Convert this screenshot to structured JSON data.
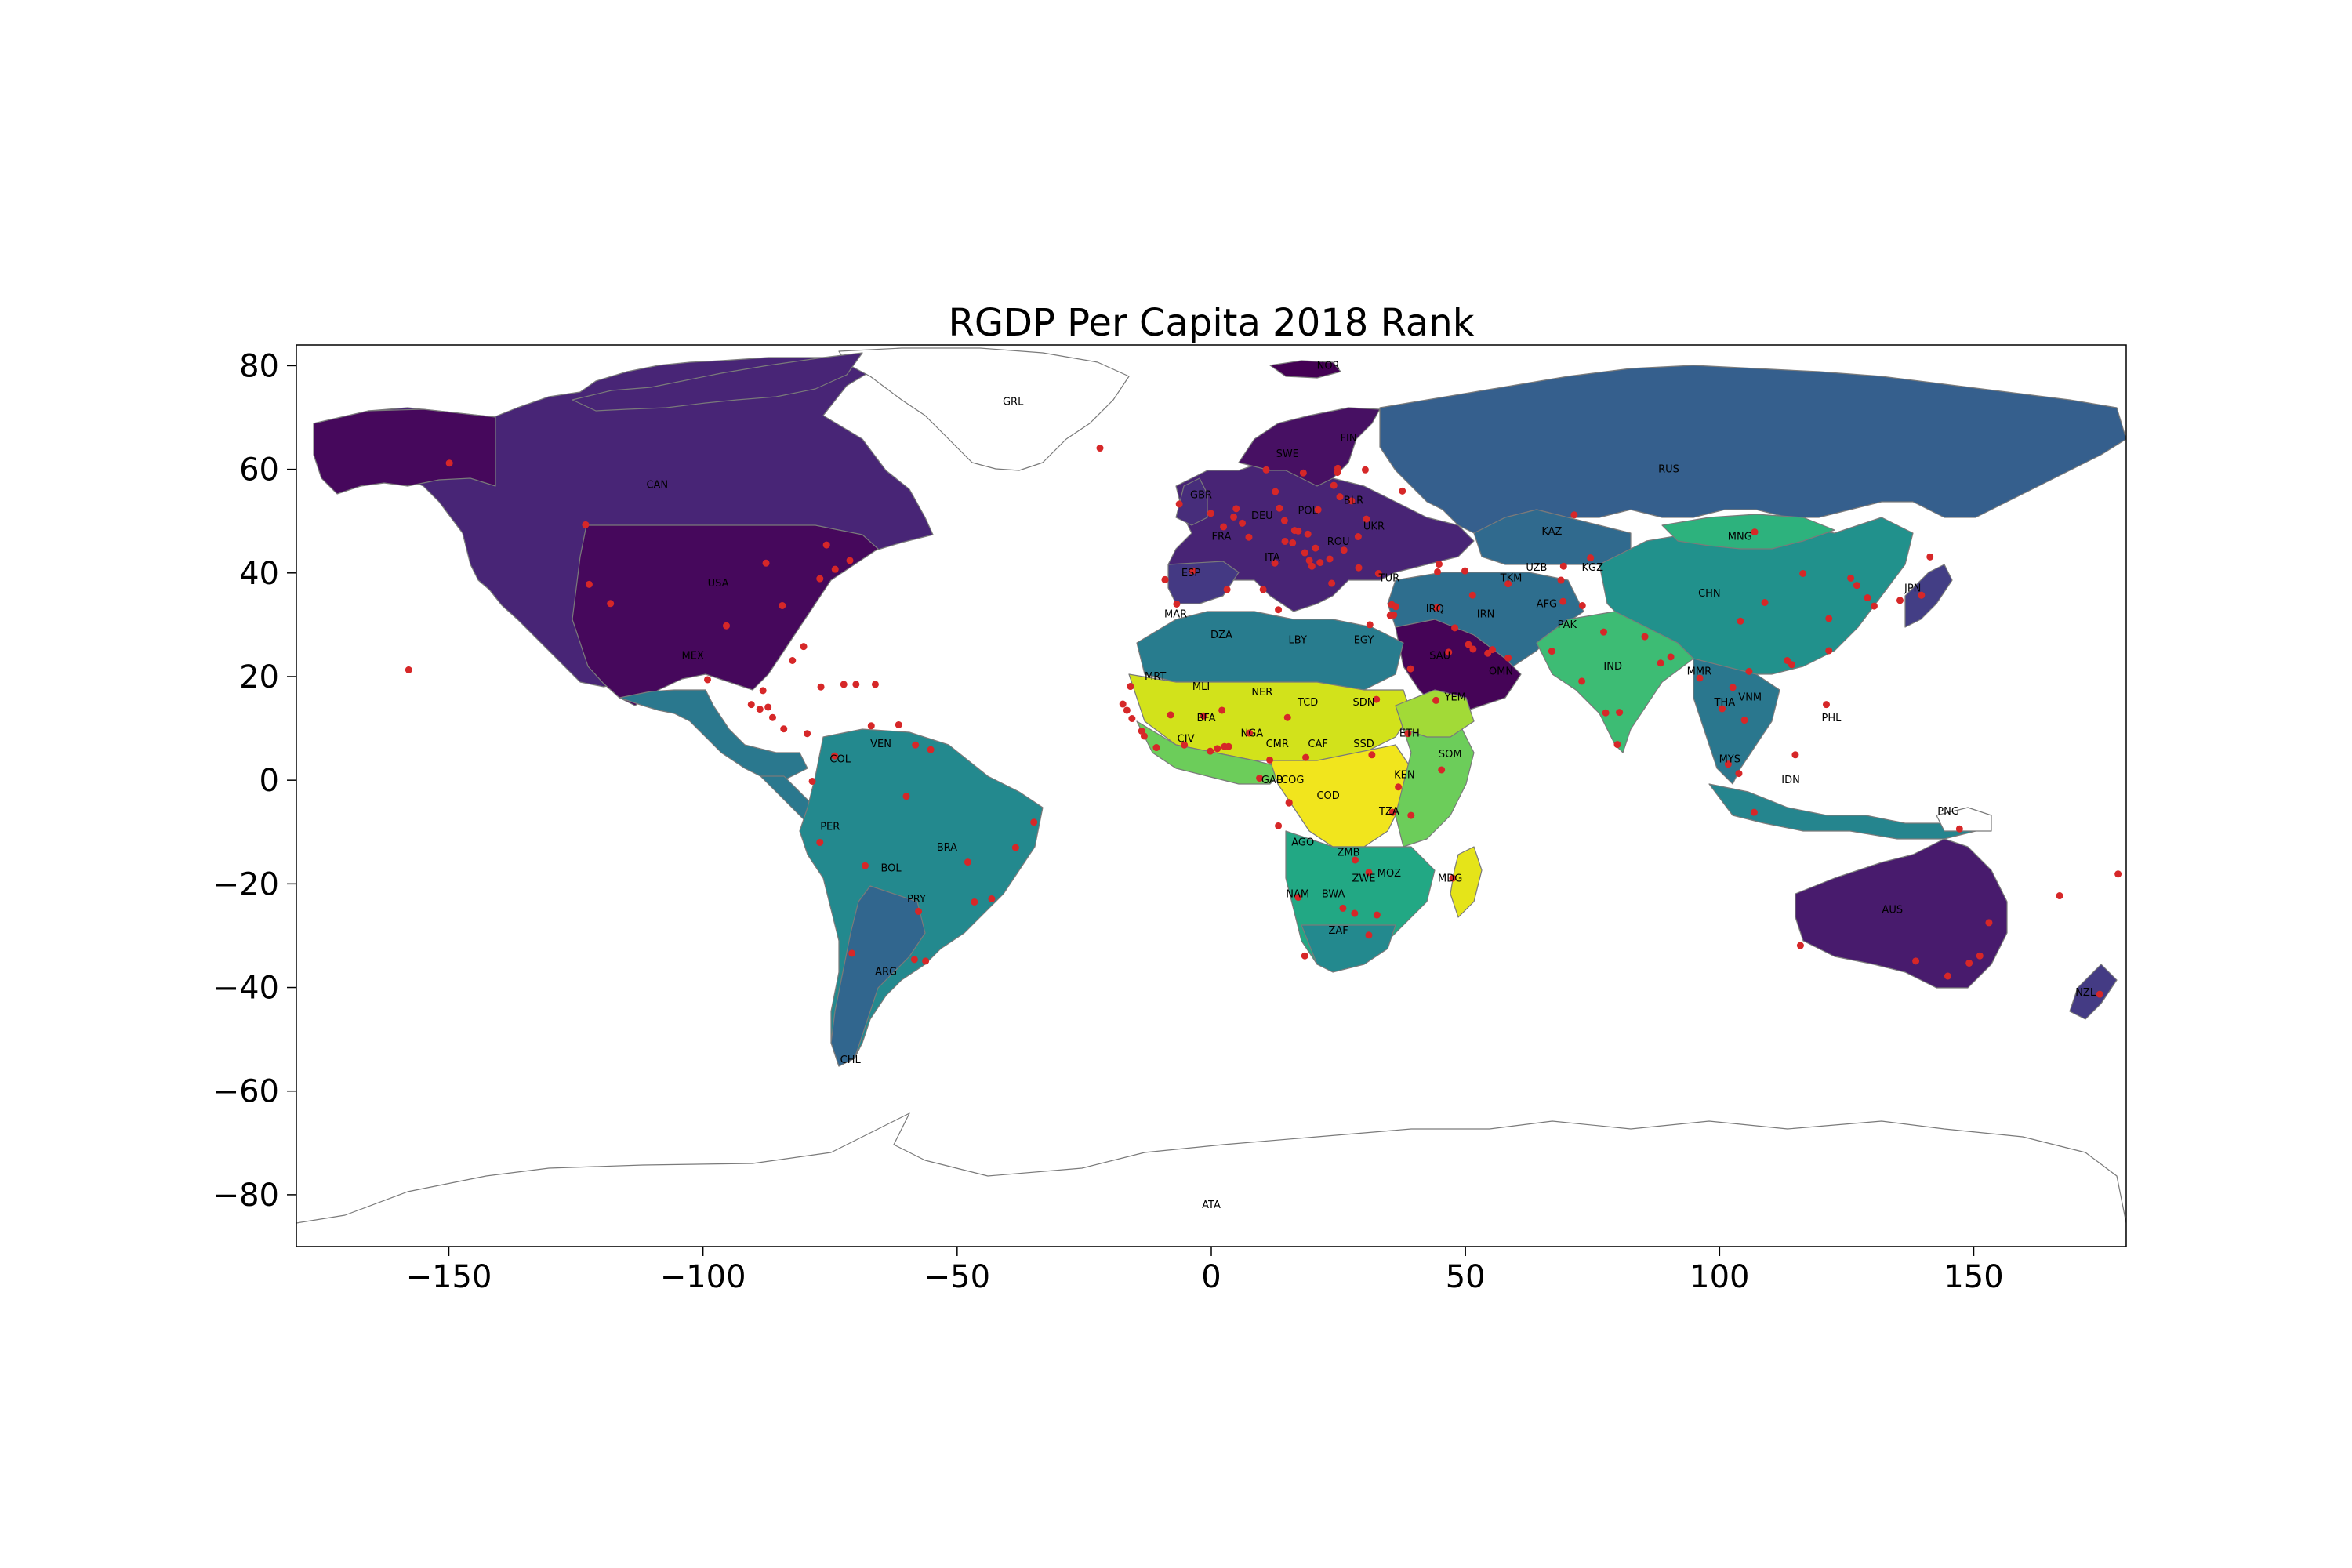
{
  "figure": {
    "title": "RGDP Per Capita 2018 Rank"
  },
  "axes": {
    "xlim": [
      -180,
      180
    ],
    "ylim": [
      -90,
      84
    ],
    "xticks": [
      {
        "value": -150,
        "label": "−150"
      },
      {
        "value": -100,
        "label": "−100"
      },
      {
        "value": -50,
        "label": "−50"
      },
      {
        "value": 0,
        "label": "0"
      },
      {
        "value": 50,
        "label": "50"
      },
      {
        "value": 100,
        "label": "100"
      },
      {
        "value": 150,
        "label": "150"
      }
    ],
    "yticks": [
      {
        "value": 80,
        "label": "80"
      },
      {
        "value": 60,
        "label": "60"
      },
      {
        "value": 40,
        "label": "40"
      },
      {
        "value": 20,
        "label": "20"
      },
      {
        "value": 0,
        "label": "0"
      },
      {
        "value": -20,
        "label": "−20"
      },
      {
        "value": -40,
        "label": "−40"
      },
      {
        "value": -60,
        "label": "−60"
      },
      {
        "value": -80,
        "label": "−80"
      }
    ]
  },
  "colors": {
    "no_data": "#ffffff",
    "capital_marker": "#d62728",
    "outline": "#7a7a7a",
    "colormap": "viridis"
  },
  "map_data": {
    "type": "choropleth",
    "colormap": "viridis",
    "countries": [
      {
        "code": "USA",
        "lon": -97,
        "lat": 38,
        "color": "#46085c"
      },
      {
        "code": "CAN",
        "lon": -109,
        "lat": 57,
        "color": "#482576"
      },
      {
        "code": "MEX",
        "lon": -102,
        "lat": 24,
        "color": "#2a788e"
      },
      {
        "code": "GRL",
        "lon": -39,
        "lat": 73,
        "color": "#ffffff"
      },
      {
        "code": "VEN",
        "lon": -65,
        "lat": 7,
        "color": "#218f8d"
      },
      {
        "code": "COL",
        "lon": -73,
        "lat": 4,
        "color": "#25858e"
      },
      {
        "code": "PER",
        "lon": -75,
        "lat": -9,
        "color": "#2c718e"
      },
      {
        "code": "BRA",
        "lon": -52,
        "lat": -13,
        "color": "#23898e"
      },
      {
        "code": "BOL",
        "lon": -63,
        "lat": -17,
        "color": "#35b779"
      },
      {
        "code": "PRY",
        "lon": -58,
        "lat": -23,
        "color": "#2c728e"
      },
      {
        "code": "ARG",
        "lon": -64,
        "lat": -37,
        "color": "#31668e"
      },
      {
        "code": "CHL",
        "lon": -71,
        "lat": -54,
        "color": "#33638d"
      },
      {
        "code": "NOR",
        "lon": 23,
        "lat": 80,
        "color": "#440154"
      },
      {
        "code": "SWE",
        "lon": 15,
        "lat": 63,
        "color": "#471063"
      },
      {
        "code": "FIN",
        "lon": 27,
        "lat": 66,
        "color": "#481467"
      },
      {
        "code": "GBR",
        "lon": -2,
        "lat": 55,
        "color": "#472d7b"
      },
      {
        "code": "FRA",
        "lon": 2,
        "lat": 47,
        "color": "#482475"
      },
      {
        "code": "DEU",
        "lon": 10,
        "lat": 51,
        "color": "#481769"
      },
      {
        "code": "POL",
        "lon": 19,
        "lat": 52,
        "color": "#3b528b"
      },
      {
        "code": "BLR",
        "lon": 28,
        "lat": 54,
        "color": "#31688e"
      },
      {
        "code": "UKR",
        "lon": 32,
        "lat": 49,
        "color": "#29af7f"
      },
      {
        "code": "ROU",
        "lon": 25,
        "lat": 46,
        "color": "#3e4989"
      },
      {
        "code": "ITA",
        "lon": 12,
        "lat": 43,
        "color": "#482878"
      },
      {
        "code": "ESP",
        "lon": -4,
        "lat": 40,
        "color": "#443983"
      },
      {
        "code": "TUR",
        "lon": 35,
        "lat": 39,
        "color": "#365c8d"
      },
      {
        "code": "RUS",
        "lon": 90,
        "lat": 60,
        "color": "#355f8d"
      },
      {
        "code": "KAZ",
        "lon": 67,
        "lat": 48,
        "color": "#306a8e"
      },
      {
        "code": "MNG",
        "lon": 104,
        "lat": 47,
        "color": "#2db27d"
      },
      {
        "code": "CHN",
        "lon": 98,
        "lat": 36,
        "color": "#21918c"
      },
      {
        "code": "UZB",
        "lon": 64,
        "lat": 41,
        "color": "#ffffff"
      },
      {
        "code": "TKM",
        "lon": 59,
        "lat": 39,
        "color": "#ffffff"
      },
      {
        "code": "KGZ",
        "lon": 75,
        "lat": 41,
        "color": "#5ec962"
      },
      {
        "code": "AFG",
        "lon": 66,
        "lat": 34,
        "color": "#ffffff"
      },
      {
        "code": "PAK",
        "lon": 70,
        "lat": 30,
        "color": "#6ccd5a"
      },
      {
        "code": "IRN",
        "lon": 54,
        "lat": 32,
        "color": "#2e6e8e"
      },
      {
        "code": "IRQ",
        "lon": 44,
        "lat": 33,
        "color": "#22a884"
      },
      {
        "code": "SAU",
        "lon": 45,
        "lat": 24,
        "color": "#450457"
      },
      {
        "code": "OMN",
        "lon": 57,
        "lat": 21,
        "color": "#3f4788"
      },
      {
        "code": "YEM",
        "lon": 48,
        "lat": 16,
        "color": "#b5de2b"
      },
      {
        "code": "IND",
        "lon": 79,
        "lat": 22,
        "color": "#3dbc74"
      },
      {
        "code": "MMR",
        "lon": 96,
        "lat": 21,
        "color": "#5ec962"
      },
      {
        "code": "THA",
        "lon": 101,
        "lat": 15,
        "color": "#2a778e"
      },
      {
        "code": "VNM",
        "lon": 106,
        "lat": 16,
        "color": "#52c569"
      },
      {
        "code": "MYS",
        "lon": 102,
        "lat": 4,
        "color": "#3b528b"
      },
      {
        "code": "IDN",
        "lon": 114,
        "lat": 0,
        "color": "#25858e"
      },
      {
        "code": "PHL",
        "lon": 122,
        "lat": 12,
        "color": "#38b977"
      },
      {
        "code": "PNG",
        "lon": 145,
        "lat": -6,
        "color": "#ffffff"
      },
      {
        "code": "JPN",
        "lon": 138,
        "lat": 37,
        "color": "#433e85"
      },
      {
        "code": "AUS",
        "lon": 134,
        "lat": -25,
        "color": "#481b6d"
      },
      {
        "code": "NZL",
        "lon": 172,
        "lat": -41,
        "color": "#443b84"
      },
      {
        "code": "MAR",
        "lon": -7,
        "lat": 32,
        "color": "#29af7f"
      },
      {
        "code": "DZA",
        "lon": 2,
        "lat": 28,
        "color": "#287c8e"
      },
      {
        "code": "LBY",
        "lon": 17,
        "lat": 27,
        "color": "#2c728e"
      },
      {
        "code": "EGY",
        "lon": 30,
        "lat": 27,
        "color": "#29af7f"
      },
      {
        "code": "MRT",
        "lon": -11,
        "lat": 20,
        "color": "#7ad151"
      },
      {
        "code": "MLI",
        "lon": -2,
        "lat": 18,
        "color": "#d2e21b"
      },
      {
        "code": "NER",
        "lon": 10,
        "lat": 17,
        "color": "#f1e51d"
      },
      {
        "code": "TCD",
        "lon": 19,
        "lat": 15,
        "color": "#8fd744"
      },
      {
        "code": "SDN",
        "lon": 30,
        "lat": 15,
        "color": "#6ccd5a"
      },
      {
        "code": "SSD",
        "lon": 30,
        "lat": 7,
        "color": "#ffffff"
      },
      {
        "code": "ETH",
        "lon": 39,
        "lat": 9,
        "color": "#a2da37"
      },
      {
        "code": "SOM",
        "lon": 47,
        "lat": 5,
        "color": "#ffffff"
      },
      {
        "code": "NGA",
        "lon": 8,
        "lat": 9,
        "color": "#6ccd5a"
      },
      {
        "code": "CMR",
        "lon": 13,
        "lat": 7,
        "color": "#7ad151"
      },
      {
        "code": "CAF",
        "lon": 21,
        "lat": 7,
        "color": "#fde725"
      },
      {
        "code": "BFA",
        "lon": -1,
        "lat": 12,
        "color": "#c0df25"
      },
      {
        "code": "CIV",
        "lon": -5,
        "lat": 8,
        "color": "#6ccd5a"
      },
      {
        "code": "GAB",
        "lon": 12,
        "lat": 0,
        "color": "#26828e"
      },
      {
        "code": "COG",
        "lon": 16,
        "lat": 0,
        "color": "#3dbc74"
      },
      {
        "code": "COD",
        "lon": 23,
        "lat": -3,
        "color": "#f1e51d"
      },
      {
        "code": "KEN",
        "lon": 38,
        "lat": 1,
        "color": "#6ccd5a"
      },
      {
        "code": "TZA",
        "lon": 35,
        "lat": -6,
        "color": "#7ad151"
      },
      {
        "code": "AGO",
        "lon": 18,
        "lat": -12,
        "color": "#1fa188"
      },
      {
        "code": "ZMB",
        "lon": 27,
        "lat": -14,
        "color": "#8fd744"
      },
      {
        "code": "MOZ",
        "lon": 35,
        "lat": -18,
        "color": "#e2e418"
      },
      {
        "code": "ZWE",
        "lon": 30,
        "lat": -19,
        "color": "#b5de2b"
      },
      {
        "code": "MDG",
        "lon": 47,
        "lat": -19,
        "color": "#e5e419"
      },
      {
        "code": "NAM",
        "lon": 17,
        "lat": -22,
        "color": "#22a884"
      },
      {
        "code": "BWA",
        "lon": 24,
        "lat": -22,
        "color": "#2e6e8e"
      },
      {
        "code": "ZAF",
        "lon": 25,
        "lat": -29,
        "color": "#23898e"
      },
      {
        "code": "ATA",
        "lon": 0,
        "lat": -82,
        "color": "#ffffff"
      }
    ],
    "capitals": [
      [
        -77.0,
        38.9
      ],
      [
        -75.7,
        45.4
      ],
      [
        -99.1,
        19.4
      ],
      [
        -74.1,
        4.7
      ],
      [
        -66.9,
        10.5
      ],
      [
        -77.0,
        -12.0
      ],
      [
        -47.9,
        -15.8
      ],
      [
        -68.1,
        -16.5
      ],
      [
        -57.6,
        -25.3
      ],
      [
        -58.4,
        -34.6
      ],
      [
        -70.7,
        -33.4
      ],
      [
        -0.1,
        51.5
      ],
      [
        2.4,
        48.9
      ],
      [
        13.4,
        52.5
      ],
      [
        21.0,
        52.2
      ],
      [
        27.6,
        53.9
      ],
      [
        30.5,
        50.4
      ],
      [
        26.1,
        44.4
      ],
      [
        12.5,
        41.9
      ],
      [
        -3.7,
        40.4
      ],
      [
        32.9,
        39.9
      ],
      [
        37.6,
        55.8
      ],
      [
        71.4,
        51.2
      ],
      [
        106.9,
        47.9
      ],
      [
        116.4,
        39.9
      ],
      [
        69.3,
        41.3
      ],
      [
        58.4,
        37.9
      ],
      [
        74.6,
        42.9
      ],
      [
        69.2,
        34.5
      ],
      [
        73.0,
        33.7
      ],
      [
        51.4,
        35.7
      ],
      [
        44.4,
        33.3
      ],
      [
        46.7,
        24.7
      ],
      [
        58.4,
        23.6
      ],
      [
        44.2,
        15.4
      ],
      [
        77.2,
        28.6
      ],
      [
        96.1,
        19.7
      ],
      [
        100.5,
        13.8
      ],
      [
        105.8,
        21.0
      ],
      [
        101.7,
        3.1
      ],
      [
        106.8,
        -6.2
      ],
      [
        121.0,
        14.6
      ],
      [
        147.2,
        -9.4
      ],
      [
        139.7,
        35.7
      ],
      [
        149.1,
        -35.3
      ],
      [
        174.8,
        -41.3
      ],
      [
        -6.8,
        34.0
      ],
      [
        3.1,
        36.8
      ],
      [
        13.2,
        32.9
      ],
      [
        31.2,
        30.0
      ],
      [
        -15.9,
        18.1
      ],
      [
        -8.0,
        12.6
      ],
      [
        2.1,
        13.5
      ],
      [
        15.0,
        12.1
      ],
      [
        32.5,
        15.6
      ],
      [
        31.6,
        4.9
      ],
      [
        38.7,
        9.0
      ],
      [
        45.3,
        2.0
      ],
      [
        7.5,
        9.1
      ],
      [
        11.5,
        3.9
      ],
      [
        18.6,
        4.4
      ],
      [
        -1.5,
        12.4
      ],
      [
        -5.3,
        6.8
      ],
      [
        9.5,
        0.4
      ],
      [
        15.3,
        -4.3
      ],
      [
        15.3,
        -4.4
      ],
      [
        36.8,
        -1.3
      ],
      [
        35.7,
        -6.2
      ],
      [
        13.2,
        -8.8
      ],
      [
        28.3,
        -15.4
      ],
      [
        32.6,
        -26.0
      ],
      [
        31.0,
        -17.8
      ],
      [
        47.5,
        -18.9
      ],
      [
        17.1,
        -22.6
      ],
      [
        25.9,
        -24.7
      ],
      [
        28.2,
        -25.7
      ],
      [
        -17.4,
        14.7
      ],
      [
        -13.7,
        9.5
      ],
      [
        -10.8,
        6.3
      ],
      [
        -0.2,
        5.6
      ],
      [
        1.2,
        6.1
      ],
      [
        2.6,
        6.5
      ],
      [
        -16.6,
        13.5
      ],
      [
        -15.6,
        11.9
      ],
      [
        -21.9,
        64.1
      ],
      [
        -6.3,
        53.3
      ],
      [
        4.9,
        52.4
      ],
      [
        4.4,
        50.8
      ],
      [
        6.1,
        49.6
      ],
      [
        7.4,
        46.9
      ],
      [
        16.4,
        48.2
      ],
      [
        14.4,
        50.1
      ],
      [
        17.1,
        48.1
      ],
      [
        19.0,
        47.5
      ],
      [
        14.5,
        46.1
      ],
      [
        16.0,
        45.8
      ],
      [
        20.5,
        44.8
      ],
      [
        18.4,
        43.9
      ],
      [
        19.3,
        42.4
      ],
      [
        21.4,
        42.0
      ],
      [
        19.8,
        41.3
      ],
      [
        23.7,
        38.0
      ],
      [
        23.3,
        42.7
      ],
      [
        28.9,
        47.0
      ],
      [
        25.3,
        54.7
      ],
      [
        24.1,
        56.9
      ],
      [
        24.8,
        59.4
      ],
      [
        24.9,
        60.2
      ],
      [
        18.1,
        59.3
      ],
      [
        10.8,
        59.9
      ],
      [
        12.6,
        55.7
      ],
      [
        -9.1,
        38.7
      ],
      [
        10.2,
        36.8
      ],
      [
        35.5,
        33.9
      ],
      [
        36.3,
        33.5
      ],
      [
        35.9,
        31.9
      ],
      [
        35.2,
        31.8
      ],
      [
        44.5,
        40.2
      ],
      [
        44.8,
        41.7
      ],
      [
        49.9,
        40.4
      ],
      [
        47.9,
        29.4
      ],
      [
        51.5,
        25.3
      ],
      [
        54.4,
        24.5
      ],
      [
        50.6,
        26.2
      ],
      [
        68.8,
        38.6
      ],
      [
        85.3,
        27.7
      ],
      [
        90.4,
        23.8
      ],
      [
        79.9,
        6.9
      ],
      [
        104.9,
        11.6
      ],
      [
        102.6,
        17.9
      ],
      [
        103.8,
        1.3
      ],
      [
        114.9,
        4.9
      ],
      [
        127.0,
        37.6
      ],
      [
        125.8,
        39.0
      ],
      [
        121.5,
        25.0
      ],
      [
        178.4,
        -18.1
      ],
      [
        166.9,
        -22.3
      ],
      [
        -80.2,
        25.8
      ],
      [
        -82.4,
        23.1
      ],
      [
        -76.8,
        18.0
      ],
      [
        -72.3,
        18.5
      ],
      [
        -69.9,
        18.5
      ],
      [
        -66.1,
        18.5
      ],
      [
        -61.5,
        10.7
      ],
      [
        -88.8,
        13.7
      ],
      [
        -87.2,
        14.1
      ],
      [
        -86.3,
        12.1
      ],
      [
        -84.1,
        9.9
      ],
      [
        -79.5,
        9.0
      ],
      [
        -90.5,
        14.6
      ],
      [
        -88.2,
        17.3
      ],
      [
        -78.5,
        -0.2
      ],
      [
        -58.2,
        6.8
      ],
      [
        -55.2,
        5.9
      ],
      [
        -56.2,
        -34.9
      ],
      [
        -122.4,
        37.8
      ],
      [
        -118.2,
        34.1
      ],
      [
        -87.6,
        41.9
      ],
      [
        -123.1,
        49.3
      ],
      [
        -74.0,
        40.7
      ],
      [
        -71.1,
        42.4
      ],
      [
        -95.4,
        29.8
      ],
      [
        -84.4,
        33.7
      ],
      [
        -157.9,
        21.3
      ],
      [
        -149.9,
        61.2
      ],
      [
        -43.2,
        -22.9
      ],
      [
        -46.6,
        -23.5
      ],
      [
        -38.5,
        -13.0
      ],
      [
        -34.9,
        -8.1
      ],
      [
        -60.0,
        -3.1
      ],
      [
        151.2,
        -33.9
      ],
      [
        144.9,
        -37.8
      ],
      [
        153.0,
        -27.5
      ],
      [
        115.9,
        -31.9
      ],
      [
        138.6,
        -34.9
      ],
      [
        121.5,
        31.2
      ],
      [
        113.3,
        23.1
      ],
      [
        114.2,
        22.3
      ],
      [
        104.1,
        30.7
      ],
      [
        108.9,
        34.3
      ],
      [
        72.9,
        19.1
      ],
      [
        88.4,
        22.6
      ],
      [
        80.3,
        13.1
      ],
      [
        77.6,
        13.0
      ],
      [
        67.0,
        24.9
      ],
      [
        139.7,
        35.7
      ],
      [
        135.5,
        34.7
      ],
      [
        141.4,
        43.1
      ],
      [
        129.1,
        35.2
      ],
      [
        130.4,
        33.6
      ],
      [
        -9.1,
        38.7
      ],
      [
        29.0,
        41.0
      ],
      [
        30.3,
        59.9
      ],
      [
        39.2,
        21.5
      ],
      [
        55.3,
        25.2
      ],
      [
        3.4,
        6.5
      ],
      [
        39.3,
        -6.8
      ],
      [
        18.4,
        -33.9
      ],
      [
        31.0,
        -29.9
      ],
      [
        -13.2,
        8.5
      ]
    ]
  }
}
